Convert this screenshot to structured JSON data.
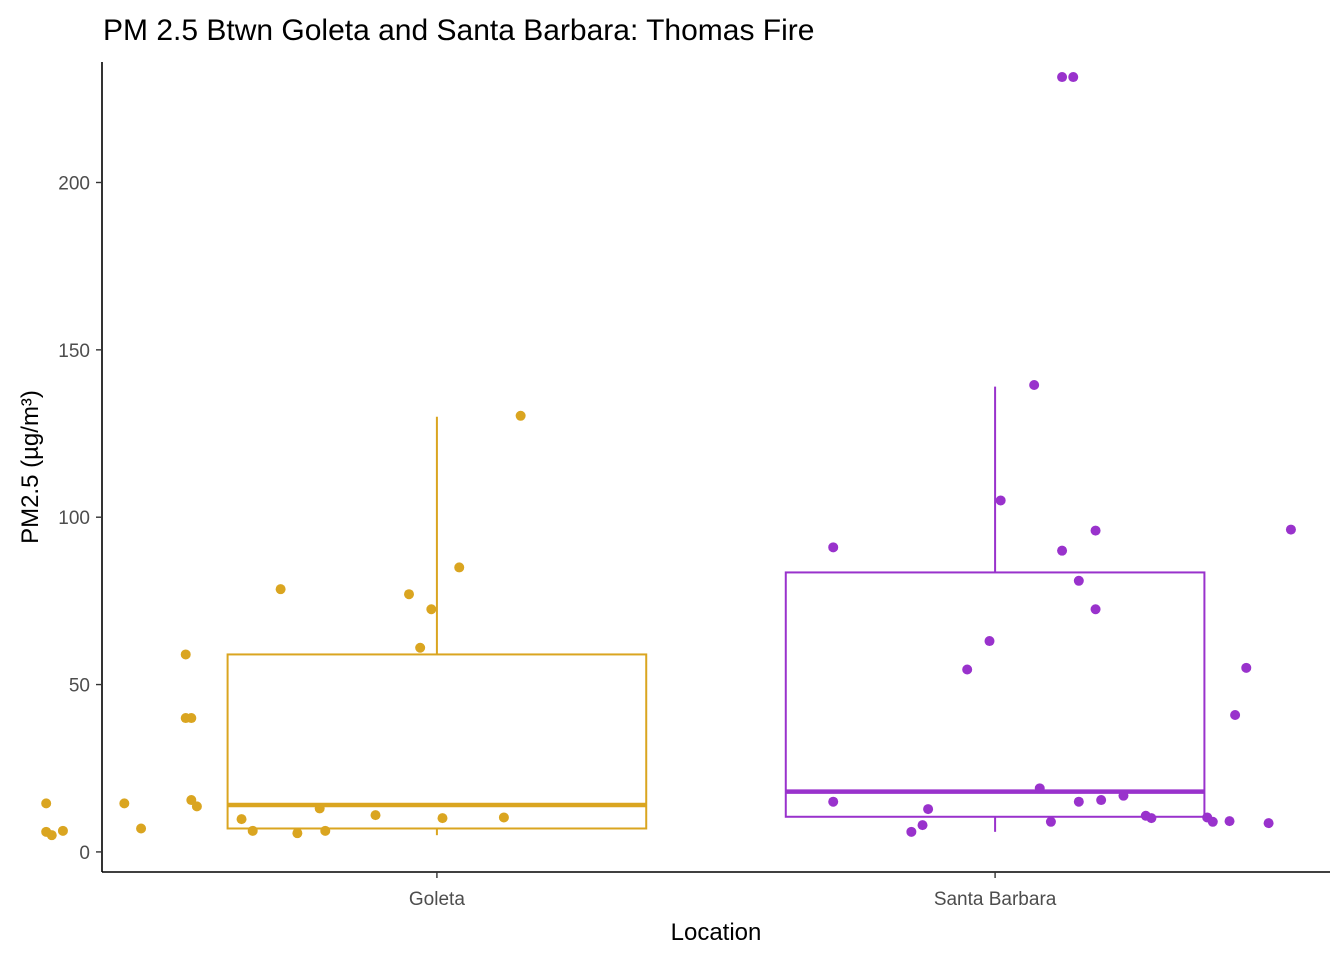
{
  "chart_data": {
    "type": "box",
    "title": "PM 2.5 Btwn Goleta and Santa Barbara: Thomas Fire",
    "xlabel": "Location",
    "ylabel": "PM2.5 (µg/m³)",
    "ylim": [
      -6,
      236
    ],
    "yticks": [
      0,
      50,
      100,
      150,
      200
    ],
    "grid": false,
    "legend": "none",
    "categories": [
      "Goleta",
      "Santa Barbara"
    ],
    "series": [
      {
        "category": "Goleta",
        "color": "#DAA520",
        "box": {
          "whisker_low": 5,
          "q1": 7,
          "median": 14,
          "q3": 59,
          "whisker_high": 130
        },
        "points": [
          {
            "x": 0.3,
            "y": 14.5
          },
          {
            "x": 0.3,
            "y": 6
          },
          {
            "x": 0.31,
            "y": 5
          },
          {
            "x": 0.33,
            "y": 6.3
          },
          {
            "x": 0.44,
            "y": 14.5
          },
          {
            "x": 0.47,
            "y": 7
          },
          {
            "x": 0.56,
            "y": 15.5
          },
          {
            "x": 0.55,
            "y": 59
          },
          {
            "x": 0.55,
            "y": 40
          },
          {
            "x": 0.56,
            "y": 40
          },
          {
            "x": 0.57,
            "y": 13.6
          },
          {
            "x": 0.65,
            "y": 9.8
          },
          {
            "x": 0.67,
            "y": 6.3
          },
          {
            "x": 0.72,
            "y": 78.5
          },
          {
            "x": 0.75,
            "y": 5.6
          },
          {
            "x": 0.79,
            "y": 13
          },
          {
            "x": 0.8,
            "y": 6.3
          },
          {
            "x": 0.89,
            "y": 11
          },
          {
            "x": 0.95,
            "y": 77
          },
          {
            "x": 0.97,
            "y": 61
          },
          {
            "x": 0.99,
            "y": 72.5
          },
          {
            "x": 1.01,
            "y": 10.1
          },
          {
            "x": 1.04,
            "y": 85
          },
          {
            "x": 1.12,
            "y": 10.3
          },
          {
            "x": 1.15,
            "y": 130.3
          }
        ]
      },
      {
        "category": "Santa Barbara",
        "color": "#9932CC",
        "box": {
          "whisker_low": 6,
          "q1": 10.5,
          "median": 18,
          "q3": 83.5,
          "whisker_high": 139
        },
        "points": [
          {
            "x": 1.71,
            "y": 91
          },
          {
            "x": 1.71,
            "y": 15
          },
          {
            "x": 1.85,
            "y": 6
          },
          {
            "x": 1.87,
            "y": 8
          },
          {
            "x": 1.88,
            "y": 12.8
          },
          {
            "x": 1.95,
            "y": 54.5
          },
          {
            "x": 1.99,
            "y": 63
          },
          {
            "x": 2.01,
            "y": 105
          },
          {
            "x": 2.07,
            "y": 139.5
          },
          {
            "x": 2.08,
            "y": 19
          },
          {
            "x": 2.1,
            "y": 9
          },
          {
            "x": 2.12,
            "y": 90
          },
          {
            "x": 2.12,
            "y": 231.5
          },
          {
            "x": 2.14,
            "y": 231.5
          },
          {
            "x": 2.15,
            "y": 15
          },
          {
            "x": 2.15,
            "y": 81
          },
          {
            "x": 2.18,
            "y": 96
          },
          {
            "x": 2.18,
            "y": 72.5
          },
          {
            "x": 2.19,
            "y": 15.5
          },
          {
            "x": 2.23,
            "y": 16.8
          },
          {
            "x": 2.27,
            "y": 10.8
          },
          {
            "x": 2.28,
            "y": 10.1
          },
          {
            "x": 2.38,
            "y": 10.3
          },
          {
            "x": 2.39,
            "y": 9
          },
          {
            "x": 2.42,
            "y": 9.2
          },
          {
            "x": 2.43,
            "y": 40.9
          },
          {
            "x": 2.45,
            "y": 55
          },
          {
            "x": 2.49,
            "y": 8.6
          },
          {
            "x": 2.53,
            "y": 96.3
          }
        ]
      }
    ]
  }
}
